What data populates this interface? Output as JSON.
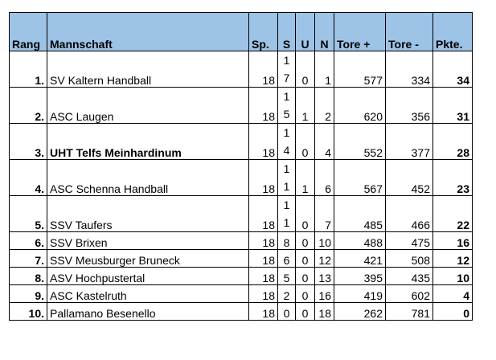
{
  "headers": {
    "rank": "Rang",
    "team": "Mannschaft",
    "played": "Sp.",
    "wins": "S",
    "draws": "U",
    "losses": "N",
    "goals_for": "Tore +",
    "goals_against": "Tore -",
    "points": "Pkte."
  },
  "rows": [
    {
      "rank": "1.",
      "team": "SV Kaltern Handball",
      "played": "18",
      "wins": "17",
      "wins_top": "1",
      "wins_bottom": "7",
      "draws": "0",
      "losses": "1",
      "goals_for": "577",
      "goals_against": "334",
      "points": "34"
    },
    {
      "rank": "2.",
      "team": "ASC Laugen",
      "played": "18",
      "wins": "15",
      "wins_top": "1",
      "wins_bottom": "5",
      "draws": "1",
      "losses": "2",
      "goals_for": "620",
      "goals_against": "356",
      "points": "31"
    },
    {
      "rank": "3.",
      "team": "UHT Telfs Meinhardinum",
      "played": "18",
      "wins": "14",
      "wins_top": "1",
      "wins_bottom": "4",
      "draws": "0",
      "losses": "4",
      "goals_for": "552",
      "goals_against": "377",
      "points": "28"
    },
    {
      "rank": "4.",
      "team": "ASC Schenna Handball",
      "played": "18",
      "wins": "11",
      "wins_top": "1",
      "wins_bottom": "1",
      "draws": "1",
      "losses": "6",
      "goals_for": "567",
      "goals_against": "452",
      "points": "23"
    },
    {
      "rank": "5.",
      "team": "SSV Taufers",
      "played": "18",
      "wins": "11",
      "wins_top": "1",
      "wins_bottom": "1",
      "draws": "0",
      "losses": "7",
      "goals_for": "485",
      "goals_against": "466",
      "points": "22"
    },
    {
      "rank": "6.",
      "team": "SSV Brixen",
      "played": "18",
      "wins": "8",
      "draws": "0",
      "losses": "10",
      "goals_for": "488",
      "goals_against": "475",
      "points": "16"
    },
    {
      "rank": "7.",
      "team": "SSV Meusburger Bruneck",
      "played": "18",
      "wins": "6",
      "draws": "0",
      "losses": "12",
      "goals_for": "421",
      "goals_against": "508",
      "points": "12"
    },
    {
      "rank": "8.",
      "team": "ASV Hochpustertal",
      "played": "18",
      "wins": "5",
      "draws": "0",
      "losses": "13",
      "goals_for": "395",
      "goals_against": "435",
      "points": "10"
    },
    {
      "rank": "9.",
      "team": "ASC Kastelruth",
      "played": "18",
      "wins": "2",
      "draws": "0",
      "losses": "16",
      "goals_for": "419",
      "goals_against": "602",
      "points": "4"
    },
    {
      "rank": "10.",
      "team": "Pallamano Besenello",
      "played": "18",
      "wins": "0",
      "draws": "0",
      "losses": "18",
      "goals_for": "262",
      "goals_against": "781",
      "points": "0"
    }
  ],
  "colors": {
    "header_background": "#9dc3e6",
    "border": "#000000"
  }
}
